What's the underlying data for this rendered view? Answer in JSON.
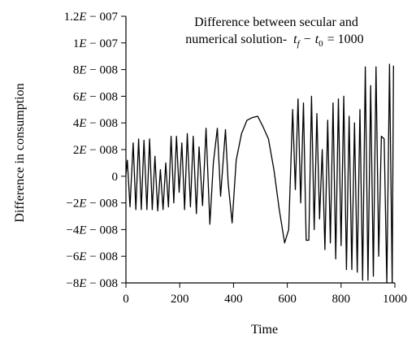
{
  "chart_data": {
    "type": "line",
    "title_line1": "Difference between secular and",
    "title_line2_text": "numerical solution-",
    "title_line2_formula": {
      "var1": "t",
      "sub1": "f",
      "minus": "−",
      "var2": "t",
      "sub2": "0",
      "equals": "= 1000"
    },
    "xlabel": "Time",
    "ylabel": "Difference in consumption",
    "xlim": [
      0,
      1000
    ],
    "ylim": [
      -8e-08,
      1.2e-07
    ],
    "x_ticks": [
      0,
      200,
      400,
      600,
      800,
      1000
    ],
    "y_ticks": [
      {
        "value": 1.2e-07,
        "mantissa": "1.2",
        "exp": "007"
      },
      {
        "value": 1e-07,
        "mantissa": "1",
        "exp": "007"
      },
      {
        "value": 8e-08,
        "mantissa": "8",
        "exp": "008"
      },
      {
        "value": 6e-08,
        "mantissa": "6",
        "exp": "008"
      },
      {
        "value": 4e-08,
        "mantissa": "4",
        "exp": "008"
      },
      {
        "value": 2e-08,
        "mantissa": "2",
        "exp": "008"
      },
      {
        "value": 0,
        "mantissa": "0",
        "exp": ""
      },
      {
        "value": -2e-08,
        "mantissa": "−2",
        "exp": "008"
      },
      {
        "value": -4e-08,
        "mantissa": "−4",
        "exp": "008"
      },
      {
        "value": -6e-08,
        "mantissa": "−6",
        "exp": "008"
      },
      {
        "value": -8e-08,
        "mantissa": "−8",
        "exp": "008"
      }
    ],
    "series": [
      {
        "color": "#000000",
        "x": [
          0,
          5,
          15,
          27,
          37,
          47,
          57,
          67,
          78,
          88,
          98,
          108,
          118,
          128,
          138,
          148,
          158,
          168,
          178,
          188,
          198,
          208,
          218,
          228,
          240,
          250,
          262,
          272,
          285,
          298,
          312,
          325,
          340,
          352,
          370,
          380,
          395,
          410,
          430,
          450,
          470,
          490,
          510,
          530,
          550,
          570,
          590,
          605,
          620,
          630,
          640,
          650,
          660,
          670,
          680,
          690,
          700,
          710,
          720,
          730,
          740,
          750,
          760,
          770,
          780,
          790,
          800,
          810,
          820,
          830,
          840,
          850,
          860,
          870,
          880,
          890,
          900,
          910,
          920,
          930,
          940,
          950,
          960,
          970,
          980,
          990,
          995
        ],
        "y": [
          1e-09,
          1.2e-08,
          -2.3e-08,
          2.5e-08,
          -2.5e-08,
          2.8e-08,
          -2.5e-08,
          2.7e-08,
          -2.5e-08,
          2.8e-08,
          -2.5e-08,
          1.5e-08,
          -2.6e-08,
          5e-09,
          -2.5e-08,
          1e-08,
          -2.3e-08,
          3e-08,
          -2e-08,
          3e-08,
          -1.2e-08,
          2.5e-08,
          -2.5e-08,
          3.2e-08,
          -2.3e-08,
          3e-08,
          -2.8e-08,
          2.2e-08,
          -2.2e-08,
          3.6e-08,
          -3.6e-08,
          1e-08,
          3.6e-08,
          -1.5e-08,
          3.5e-08,
          -5e-09,
          -3.5e-08,
          1.2e-08,
          3.2e-08,
          4.2e-08,
          4.4e-08,
          4.5e-08,
          3.7e-08,
          2.8e-08,
          5e-09,
          -2.5e-08,
          -5e-08,
          -4e-08,
          5e-08,
          -1e-08,
          5.8e-08,
          -2e-08,
          5.5e-08,
          -4.8e-08,
          -4.8e-08,
          6e-08,
          -4e-08,
          4.7e-08,
          -3.2e-08,
          2e-08,
          -5.5e-08,
          4.2e-08,
          -5e-08,
          5.5e-08,
          -6.2e-08,
          5.8e-08,
          -5.2e-08,
          6e-08,
          -7e-08,
          4.5e-08,
          -7e-08,
          4e-08,
          -7.2e-08,
          5e-08,
          -7.8e-08,
          8.2e-08,
          -7.8e-08,
          6.8e-08,
          -7.5e-08,
          8.2e-08,
          -6e-08,
          3e-08,
          2.8e-08,
          -8e-08,
          8.4e-08,
          -8e-08,
          8.3e-08
        ]
      }
    ]
  }
}
